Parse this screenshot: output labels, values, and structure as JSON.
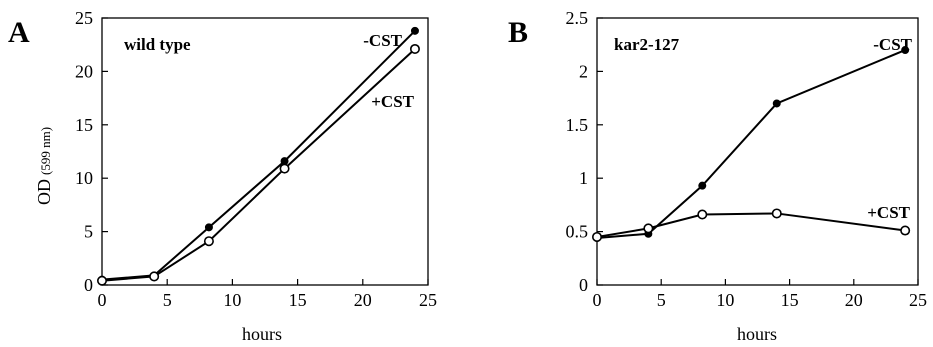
{
  "chart_data": [
    {
      "type": "line",
      "panel": "A",
      "inset_title": "wild type",
      "xlabel": "hours",
      "ylabel": "OD",
      "ylabel_sub": "(599 nm)",
      "xlim": [
        0,
        25
      ],
      "ylim": [
        0,
        25
      ],
      "xticks": [
        0,
        5,
        10,
        15,
        20,
        25
      ],
      "yticks": [
        0,
        5,
        10,
        15,
        20,
        25
      ],
      "ytick_labels": [
        "0",
        "5",
        "10",
        "15",
        "20",
        "25"
      ],
      "series": [
        {
          "name": "-CST",
          "marker": "filled",
          "x": [
            0,
            4,
            8.2,
            14,
            24
          ],
          "y": [
            0.5,
            0.9,
            5.4,
            11.6,
            23.8
          ]
        },
        {
          "name": "+CST",
          "marker": "open",
          "x": [
            0,
            4,
            8.2,
            14,
            24
          ],
          "y": [
            0.4,
            0.8,
            4.1,
            10.9,
            22.1
          ]
        }
      ]
    },
    {
      "type": "line",
      "panel": "B",
      "inset_title": "kar2-127",
      "xlabel": "hours",
      "ylabel": "",
      "xlim": [
        0,
        25
      ],
      "ylim": [
        0,
        2.5
      ],
      "xticks": [
        0,
        5,
        10,
        15,
        20,
        25
      ],
      "yticks": [
        0,
        0.5,
        1,
        1.5,
        2,
        2.5
      ],
      "ytick_labels": [
        "0",
        "0.5",
        "1",
        "1.5",
        "2",
        "2.5"
      ],
      "series": [
        {
          "name": "-CST",
          "marker": "filled",
          "x": [
            0,
            4,
            8.2,
            14,
            24
          ],
          "y": [
            0.44,
            0.48,
            0.93,
            1.7,
            2.2
          ]
        },
        {
          "name": "+CST",
          "marker": "open",
          "x": [
            0,
            4,
            8.2,
            14,
            24
          ],
          "y": [
            0.45,
            0.53,
            0.66,
            0.67,
            0.51
          ]
        }
      ]
    }
  ]
}
